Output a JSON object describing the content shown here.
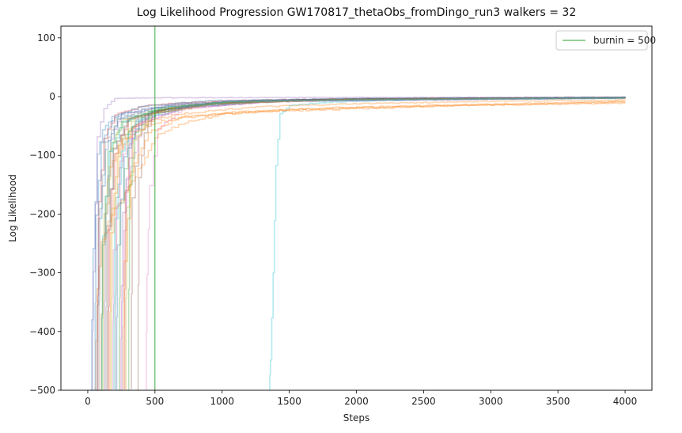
{
  "chart_data": {
    "type": "line",
    "title": "Log Likelihood Progression GW170817_thetaObs_fromDingo_run3 walkers = 32",
    "xlabel": "Steps",
    "ylabel": "Log Likelihood",
    "xlim": [
      -200,
      4200
    ],
    "ylim": [
      -500,
      120
    ],
    "xticks": [
      0,
      500,
      1000,
      1500,
      2000,
      2500,
      3000,
      3500,
      4000
    ],
    "xtick_labels": [
      "0",
      "500",
      "1000",
      "1500",
      "2000",
      "2500",
      "3000",
      "3500",
      "4000"
    ],
    "yticks": [
      100,
      0,
      -100,
      -200,
      -300,
      -400,
      -500
    ],
    "ytick_labels": [
      "100",
      "0",
      "−100",
      "−200",
      "−300",
      "−400",
      "−500"
    ],
    "grid": false,
    "legend_position": "top-right",
    "burnin": {
      "label": "burnin = 500",
      "x": 500,
      "color": "#2ca02c"
    },
    "walker_count": 32,
    "series": [
      {
        "color": "#1f77b4",
        "values": [
          [
            20,
            -500
          ],
          [
            40,
            -260
          ],
          [
            70,
            -100
          ],
          [
            110,
            -55
          ],
          [
            200,
            -35
          ],
          [
            400,
            -22
          ],
          [
            700,
            -12
          ],
          [
            1200,
            -7
          ],
          [
            2000,
            -4
          ],
          [
            3000,
            -2.5
          ],
          [
            4000,
            -1.5
          ]
        ]
      },
      {
        "color": "#ff7f0e",
        "values": [
          [
            50,
            -500
          ],
          [
            70,
            -330
          ],
          [
            100,
            -250
          ],
          [
            150,
            -210
          ],
          [
            250,
            -175
          ],
          [
            400,
            -115
          ],
          [
            500,
            -68
          ],
          [
            700,
            -45
          ],
          [
            1000,
            -30
          ],
          [
            1500,
            -22
          ],
          [
            2200,
            -18
          ],
          [
            3000,
            -14
          ],
          [
            4000,
            -9
          ]
        ]
      },
      {
        "color": "#2ca02c",
        "values": [
          [
            100,
            -500
          ],
          [
            110,
            -250
          ],
          [
            150,
            -90
          ],
          [
            250,
            -45
          ],
          [
            500,
            -24
          ],
          [
            900,
            -12
          ],
          [
            1500,
            -6
          ],
          [
            2500,
            -3.5
          ],
          [
            4000,
            -1.5
          ]
        ]
      },
      {
        "color": "#d62728",
        "values": [
          [
            150,
            -500
          ],
          [
            160,
            -220
          ],
          [
            200,
            -95
          ],
          [
            300,
            -40
          ],
          [
            600,
            -20
          ],
          [
            1000,
            -10
          ],
          [
            1800,
            -5
          ],
          [
            3000,
            -3
          ],
          [
            4000,
            -2
          ]
        ]
      },
      {
        "color": "#9467bd",
        "values": [
          [
            120,
            -500
          ],
          [
            130,
            -200
          ],
          [
            170,
            -70
          ],
          [
            250,
            -30
          ],
          [
            600,
            -14
          ],
          [
            1200,
            -7
          ],
          [
            2000,
            -4
          ],
          [
            4000,
            -1.5
          ]
        ]
      },
      {
        "color": "#8c564b",
        "values": [
          [
            370,
            -500
          ],
          [
            380,
            -140
          ],
          [
            420,
            -60
          ],
          [
            500,
            -28
          ],
          [
            900,
            -12
          ],
          [
            1500,
            -6
          ],
          [
            2500,
            -3
          ],
          [
            4000,
            -1.5
          ]
        ]
      },
      {
        "color": "#e377c2",
        "values": [
          [
            430,
            -500
          ],
          [
            440,
            -300
          ],
          [
            460,
            -150
          ],
          [
            520,
            -55
          ],
          [
            700,
            -22
          ],
          [
            1200,
            -9
          ],
          [
            2000,
            -5
          ],
          [
            4000,
            -2
          ]
        ]
      },
      {
        "color": "#7f7f7f",
        "values": [
          [
            200,
            -500
          ],
          [
            210,
            -170
          ],
          [
            260,
            -70
          ],
          [
            400,
            -30
          ],
          [
            800,
            -14
          ],
          [
            1500,
            -6
          ],
          [
            2500,
            -3
          ],
          [
            4000,
            -1.5
          ]
        ]
      },
      {
        "color": "#bcbd22",
        "values": [
          [
            170,
            -500
          ],
          [
            180,
            -190
          ],
          [
            230,
            -80
          ],
          [
            350,
            -35
          ],
          [
            700,
            -15
          ],
          [
            1300,
            -7
          ],
          [
            2200,
            -4
          ],
          [
            4000,
            -2
          ]
        ]
      },
      {
        "color": "#17becf",
        "values": [
          [
            1350,
            -500
          ],
          [
            1360,
            -450
          ],
          [
            1380,
            -300
          ],
          [
            1400,
            -120
          ],
          [
            1430,
            -30
          ],
          [
            1500,
            -15
          ],
          [
            1800,
            -9
          ],
          [
            2500,
            -5
          ],
          [
            3200,
            -4
          ],
          [
            4000,
            -3
          ]
        ]
      },
      {
        "color": "#1f77b4",
        "values": [
          [
            60,
            -500
          ],
          [
            80,
            -210
          ],
          [
            130,
            -90
          ],
          [
            220,
            -40
          ],
          [
            500,
            -20
          ],
          [
            1000,
            -10
          ],
          [
            2000,
            -4
          ],
          [
            4000,
            -2
          ]
        ]
      },
      {
        "color": "#ff7f0e",
        "values": [
          [
            90,
            -500
          ],
          [
            110,
            -240
          ],
          [
            160,
            -120
          ],
          [
            260,
            -75
          ],
          [
            450,
            -48
          ],
          [
            700,
            -34
          ],
          [
            1200,
            -26
          ],
          [
            1800,
            -22
          ],
          [
            2600,
            -16
          ],
          [
            4000,
            -11
          ]
        ]
      },
      {
        "color": "#2ca02c",
        "values": [
          [
            230,
            -500
          ],
          [
            240,
            -180
          ],
          [
            300,
            -60
          ],
          [
            450,
            -25
          ],
          [
            900,
            -12
          ],
          [
            1600,
            -6
          ],
          [
            4000,
            -2
          ]
        ]
      },
      {
        "color": "#d62728",
        "values": [
          [
            270,
            -500
          ],
          [
            280,
            -160
          ],
          [
            330,
            -55
          ],
          [
            500,
            -24
          ],
          [
            1000,
            -11
          ],
          [
            2000,
            -5
          ],
          [
            4000,
            -2
          ]
        ]
      },
      {
        "color": "#9467bd",
        "values": [
          [
            30,
            -500
          ],
          [
            40,
            -300
          ],
          [
            70,
            -70
          ],
          [
            120,
            -20
          ],
          [
            200,
            -3
          ],
          [
            500,
            -2
          ],
          [
            1500,
            -1.5
          ],
          [
            4000,
            -1
          ]
        ]
      },
      {
        "color": "#8c564b",
        "values": [
          [
            140,
            -500
          ],
          [
            150,
            -230
          ],
          [
            190,
            -90
          ],
          [
            300,
            -38
          ],
          [
            650,
            -17
          ],
          [
            1300,
            -8
          ],
          [
            2500,
            -4
          ],
          [
            4000,
            -2
          ]
        ]
      },
      {
        "color": "#e377c2",
        "values": [
          [
            240,
            -500
          ],
          [
            250,
            -320
          ],
          [
            290,
            -140
          ],
          [
            400,
            -45
          ],
          [
            700,
            -20
          ],
          [
            1400,
            -8
          ],
          [
            4000,
            -2.5
          ]
        ]
      },
      {
        "color": "#7f7f7f",
        "values": [
          [
            80,
            -500
          ],
          [
            90,
            -190
          ],
          [
            130,
            -80
          ],
          [
            220,
            -38
          ],
          [
            500,
            -18
          ],
          [
            1100,
            -8
          ],
          [
            2200,
            -4
          ],
          [
            4000,
            -1.5
          ]
        ]
      },
      {
        "color": "#bcbd22",
        "values": [
          [
            110,
            -500
          ],
          [
            120,
            -200
          ],
          [
            170,
            -85
          ],
          [
            260,
            -40
          ],
          [
            550,
            -19
          ],
          [
            1100,
            -9
          ],
          [
            2400,
            -4
          ],
          [
            4000,
            -2
          ]
        ]
      },
      {
        "color": "#17becf",
        "values": [
          [
            190,
            -500
          ],
          [
            200,
            -210
          ],
          [
            250,
            -90
          ],
          [
            360,
            -40
          ],
          [
            700,
            -18
          ],
          [
            1400,
            -7
          ],
          [
            4000,
            -2
          ]
        ]
      },
      {
        "color": "#1f77b4",
        "values": [
          [
            210,
            -500
          ],
          [
            220,
            -250
          ],
          [
            270,
            -100
          ],
          [
            380,
            -42
          ],
          [
            750,
            -18
          ],
          [
            1500,
            -7
          ],
          [
            4000,
            -2
          ]
        ]
      },
      {
        "color": "#ff7f0e",
        "values": [
          [
            160,
            -500
          ],
          [
            170,
            -230
          ],
          [
            220,
            -100
          ],
          [
            340,
            -50
          ],
          [
            650,
            -30
          ],
          [
            1200,
            -18
          ],
          [
            2000,
            -12
          ],
          [
            3000,
            -8
          ],
          [
            4000,
            -6
          ]
        ]
      },
      {
        "color": "#2ca02c",
        "values": [
          [
            300,
            -500
          ],
          [
            310,
            -150
          ],
          [
            350,
            -60
          ],
          [
            480,
            -25
          ],
          [
            900,
            -11
          ],
          [
            1800,
            -5
          ],
          [
            4000,
            -2
          ]
        ]
      },
      {
        "color": "#d62728",
        "values": [
          [
            70,
            -500
          ],
          [
            80,
            -180
          ],
          [
            120,
            -70
          ],
          [
            200,
            -30
          ],
          [
            450,
            -14
          ],
          [
            1000,
            -7
          ],
          [
            2000,
            -3.5
          ],
          [
            4000,
            -1.5
          ]
        ]
      },
      {
        "color": "#9467bd",
        "values": [
          [
            250,
            -500
          ],
          [
            260,
            -200
          ],
          [
            310,
            -80
          ],
          [
            430,
            -32
          ],
          [
            800,
            -14
          ],
          [
            1600,
            -6
          ],
          [
            4000,
            -2
          ]
        ]
      },
      {
        "color": "#8c564b",
        "values": [
          [
            320,
            -500
          ],
          [
            330,
            -170
          ],
          [
            380,
            -65
          ],
          [
            500,
            -28
          ],
          [
            950,
            -12
          ],
          [
            1900,
            -5
          ],
          [
            4000,
            -2
          ]
        ]
      },
      {
        "color": "#e377c2",
        "values": [
          [
            180,
            -500
          ],
          [
            190,
            -260
          ],
          [
            240,
            -110
          ],
          [
            360,
            -46
          ],
          [
            700,
            -20
          ],
          [
            1400,
            -8
          ],
          [
            4000,
            -2
          ]
        ]
      },
      {
        "color": "#7f7f7f",
        "values": [
          [
            130,
            -500
          ],
          [
            140,
            -220
          ],
          [
            190,
            -90
          ],
          [
            290,
            -40
          ],
          [
            600,
            -17
          ],
          [
            1300,
            -7
          ],
          [
            4000,
            -2
          ]
        ]
      },
      {
        "color": "#bcbd22",
        "values": [
          [
            280,
            -500
          ],
          [
            290,
            -190
          ],
          [
            340,
            -75
          ],
          [
            470,
            -30
          ],
          [
            900,
            -13
          ],
          [
            1800,
            -5
          ],
          [
            4000,
            -2
          ]
        ]
      },
      {
        "color": "#17becf",
        "values": [
          [
            100,
            -500
          ],
          [
            110,
            -240
          ],
          [
            160,
            -95
          ],
          [
            260,
            -42
          ],
          [
            550,
            -19
          ],
          [
            1100,
            -8
          ],
          [
            4000,
            -2
          ]
        ]
      },
      {
        "color": "#1f77b4",
        "values": [
          [
            50,
            -500
          ],
          [
            60,
            -200
          ],
          [
            100,
            -80
          ],
          [
            180,
            -35
          ],
          [
            400,
            -16
          ],
          [
            900,
            -7
          ],
          [
            2000,
            -3
          ],
          [
            4000,
            -1.5
          ]
        ]
      },
      {
        "color": "#ff7f0e",
        "values": [
          [
            260,
            -500
          ],
          [
            270,
            -280
          ],
          [
            320,
            -130
          ],
          [
            450,
            -60
          ],
          [
            700,
            -36
          ],
          [
            1100,
            -26
          ],
          [
            1700,
            -20
          ],
          [
            2500,
            -15
          ],
          [
            4000,
            -8
          ]
        ]
      }
    ]
  }
}
